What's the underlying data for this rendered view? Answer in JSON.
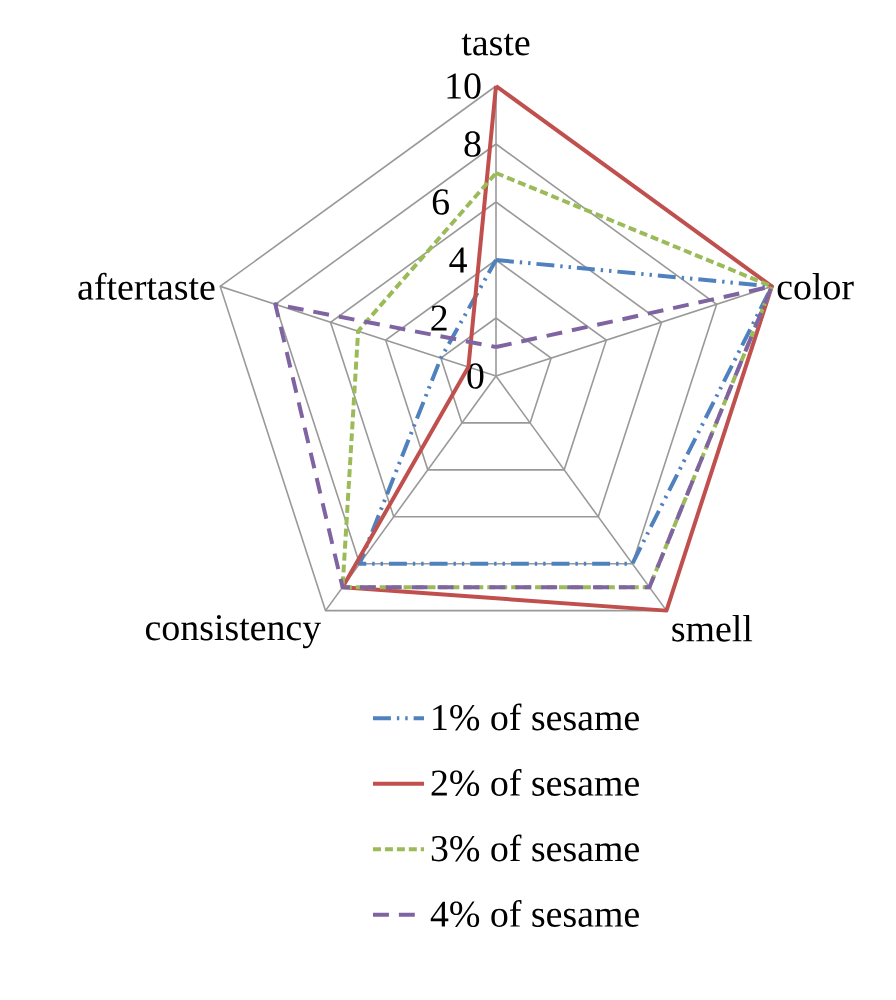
{
  "chart_data": {
    "type": "radar",
    "categories": [
      "taste",
      "color",
      "smell",
      "consistency",
      "aftertaste"
    ],
    "ylim": [
      0,
      10
    ],
    "yticks": [
      0,
      2,
      4,
      6,
      8,
      10
    ],
    "grid": true,
    "legend": "bottom",
    "marker": "none",
    "series": [
      {
        "name": "1% of sesame",
        "color": "#4f81bd",
        "line_style": "dashdotdot",
        "values": [
          4,
          10,
          8,
          8,
          2
        ]
      },
      {
        "name": "2% of sesame",
        "color": "#c0504d",
        "line_style": "solid",
        "values": [
          10,
          10,
          10,
          9,
          1
        ]
      },
      {
        "name": "3% of sesame",
        "color": "#9bbb59",
        "line_style": "dashed",
        "values": [
          7,
          10,
          9,
          9,
          5
        ]
      },
      {
        "name": "4% of sesame",
        "color": "#8064a2",
        "line_style": "loosely dashed",
        "values": [
          1,
          10,
          9,
          9,
          8
        ]
      }
    ]
  }
}
